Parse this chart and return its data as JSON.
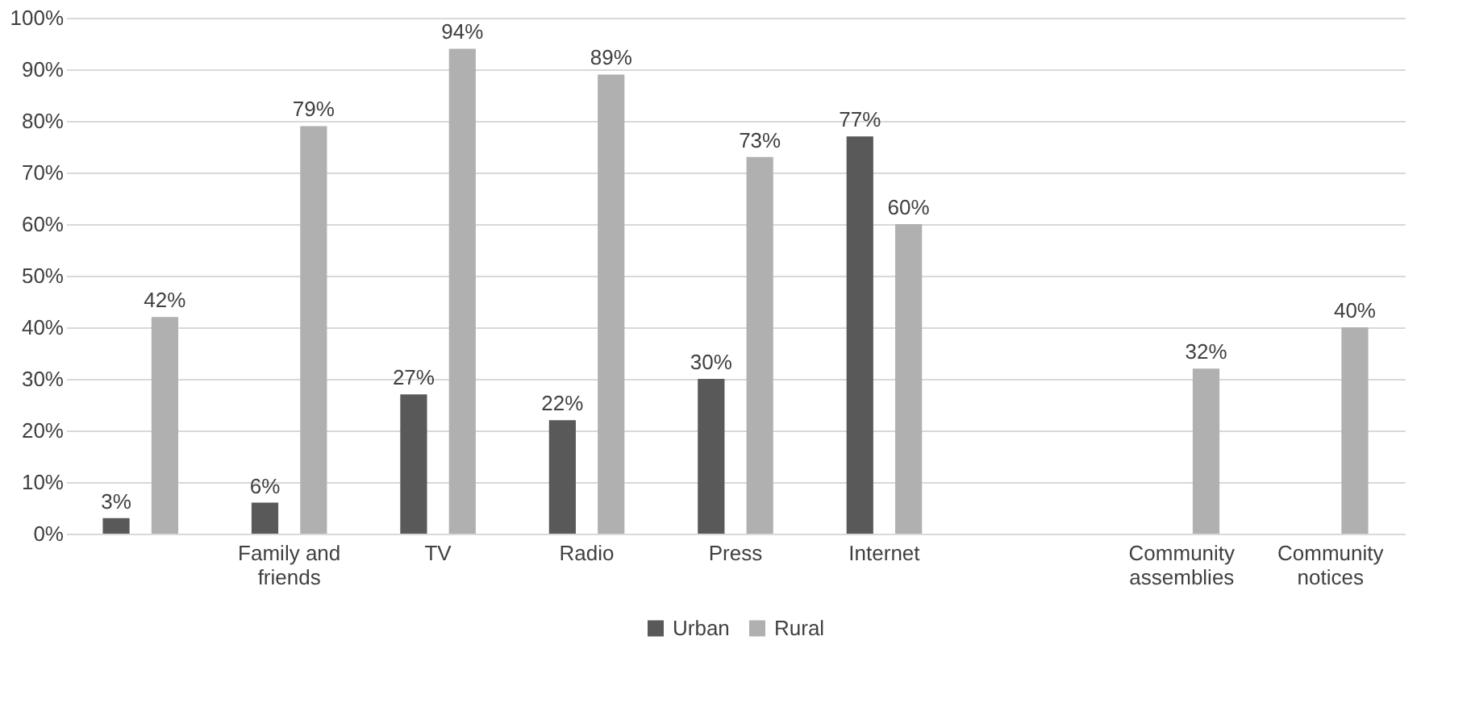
{
  "chart_data": {
    "type": "bar",
    "categories": [
      null,
      "Family and friends",
      "TV",
      "Radio",
      "Press",
      "Internet",
      null,
      "Community assemblies",
      "Community notices"
    ],
    "series": [
      {
        "name": "Urban",
        "color": "#595959",
        "values": [
          3,
          6,
          27,
          22,
          30,
          77,
          null,
          null,
          null
        ],
        "value_labels": [
          "3%",
          "6%",
          "27%",
          "22%",
          "30%",
          "77%",
          null,
          null,
          null
        ]
      },
      {
        "name": "Rural",
        "color": "#b0b0b0",
        "values": [
          42,
          79,
          94,
          89,
          73,
          60,
          null,
          32,
          40
        ],
        "value_labels": [
          "42%",
          "79%",
          "94%",
          "89%",
          "73%",
          "60%",
          null,
          "32%",
          "40%"
        ]
      }
    ],
    "ylim": [
      0,
      100
    ],
    "yticks": [
      {
        "value": 0,
        "label": "0%"
      },
      {
        "value": 10,
        "label": "10%"
      },
      {
        "value": 20,
        "label": "20%"
      },
      {
        "value": 30,
        "label": "30%"
      },
      {
        "value": 40,
        "label": "40%"
      },
      {
        "value": 50,
        "label": "50%"
      },
      {
        "value": 60,
        "label": "60%"
      },
      {
        "value": 70,
        "label": "70%"
      },
      {
        "value": 80,
        "label": "80%"
      },
      {
        "value": 90,
        "label": "90%"
      },
      {
        "value": 100,
        "label": "100%"
      }
    ],
    "grid": "y",
    "legend": "bottom"
  }
}
